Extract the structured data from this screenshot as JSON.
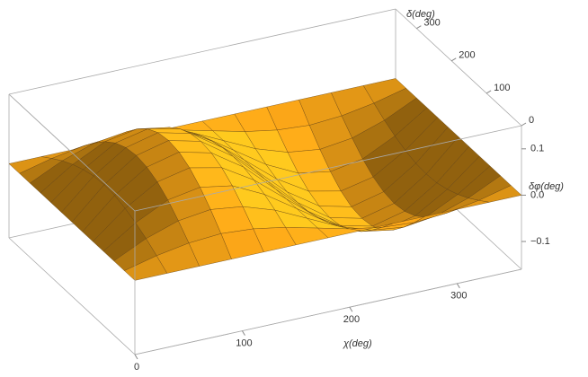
{
  "chart_data": {
    "type": "surface",
    "x_label": "χ(deg)",
    "y_label": "δ(deg)",
    "z_label": "δφ(deg)",
    "color": "#f2a21e",
    "xlim": [
      0,
      360
    ],
    "ylim": [
      0,
      360
    ],
    "zlim": [
      -0.16,
      0.15
    ],
    "xticks": [
      0,
      100,
      200,
      300
    ],
    "yticks": [
      0,
      100,
      200,
      300
    ],
    "zticks": [
      {
        "value": -0.1,
        "label": "−0.1"
      },
      {
        "value": 0,
        "label": "0.0"
      },
      0.1
    ],
    "x": [
      0,
      30,
      60,
      90,
      120,
      150,
      180,
      210,
      240,
      270,
      300,
      330,
      360
    ],
    "y": [
      0,
      30,
      60,
      90,
      120,
      150,
      180,
      210,
      240,
      270,
      300,
      330,
      360
    ],
    "z": [
      [
        0,
        0,
        0,
        0,
        0,
        0,
        0,
        0,
        0,
        0,
        0,
        0,
        0
      ],
      [
        0,
        0.017,
        0.029,
        0.034,
        0.029,
        0.017,
        0,
        -0.017,
        -0.029,
        -0.034,
        -0.029,
        -0.017,
        0
      ],
      [
        0,
        0.033,
        0.056,
        0.065,
        0.056,
        0.033,
        0,
        -0.033,
        -0.056,
        -0.065,
        -0.056,
        -0.033,
        0
      ],
      [
        0,
        0.046,
        0.08,
        0.092,
        0.08,
        0.046,
        0,
        -0.046,
        -0.08,
        -0.092,
        -0.08,
        -0.046,
        0
      ],
      [
        0,
        0.056,
        0.098,
        0.113,
        0.098,
        0.056,
        0,
        -0.056,
        -0.098,
        -0.113,
        -0.098,
        -0.056,
        0
      ],
      [
        0,
        0.063,
        0.109,
        0.126,
        0.109,
        0.063,
        0,
        -0.063,
        -0.109,
        -0.126,
        -0.109,
        -0.063,
        0
      ],
      [
        0,
        0.065,
        0.113,
        0.13,
        0.113,
        0.065,
        0,
        -0.065,
        -0.113,
        -0.13,
        -0.113,
        -0.065,
        0
      ],
      [
        0,
        0.063,
        0.109,
        0.126,
        0.109,
        0.063,
        0,
        -0.063,
        -0.109,
        -0.126,
        -0.109,
        -0.063,
        0
      ],
      [
        0,
        0.056,
        0.098,
        0.113,
        0.098,
        0.056,
        0,
        -0.056,
        -0.098,
        -0.113,
        -0.098,
        -0.056,
        0
      ],
      [
        0,
        0.046,
        0.08,
        0.092,
        0.08,
        0.046,
        0,
        -0.046,
        -0.08,
        -0.092,
        -0.08,
        -0.046,
        0
      ],
      [
        0,
        0.033,
        0.056,
        0.065,
        0.056,
        0.033,
        0,
        -0.033,
        -0.056,
        -0.065,
        -0.056,
        -0.033,
        0
      ],
      [
        0,
        0.017,
        0.029,
        0.034,
        0.029,
        0.017,
        0,
        -0.017,
        -0.029,
        -0.034,
        -0.029,
        -0.017,
        0
      ],
      [
        0,
        0,
        0,
        0,
        0,
        0,
        0,
        0,
        0,
        0,
        0,
        0,
        0
      ]
    ]
  }
}
